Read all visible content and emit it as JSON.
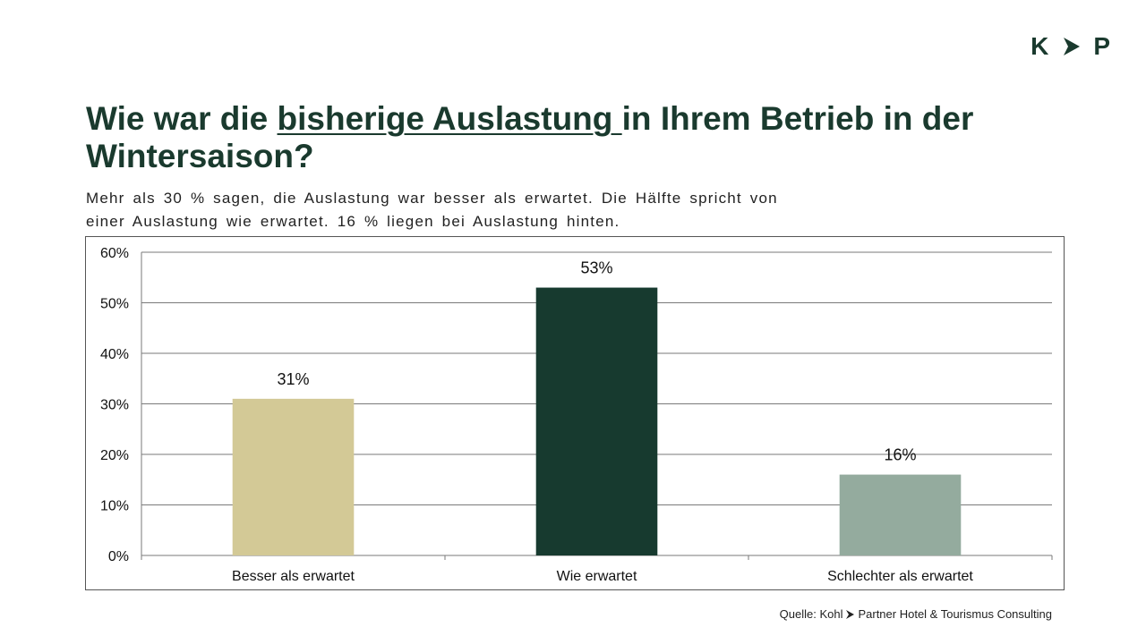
{
  "logo": {
    "left": "K",
    "right": "P",
    "arrow_icon": "chevron-right-icon"
  },
  "header": {
    "title_part1": "Wie war die ",
    "title_underlined": "bisherige Auslastung ",
    "title_part2": "in Ihrem Betrieb in der Wintersaison?",
    "subtitle": "Mehr als 30 % sagen, die Auslastung war besser als erwartet. Die Hälfte spricht von einer Auslastung wie erwartet. 16 % liegen bei Auslastung hinten."
  },
  "source": {
    "prefix": "Quelle: Kohl",
    "suffix": "Partner Hotel & Tourismus Consulting"
  },
  "chart_data": {
    "type": "bar",
    "categories": [
      "Besser als erwartet",
      "Wie erwartet",
      "Schlechter als erwartet"
    ],
    "values": [
      31,
      53,
      16
    ],
    "data_labels": [
      "31%",
      "53%",
      "16%"
    ],
    "colors": [
      "#d3c996",
      "#173a2f",
      "#94ab9e"
    ],
    "yticks": [
      0,
      10,
      20,
      30,
      40,
      50,
      60
    ],
    "ytick_labels": [
      "0%",
      "10%",
      "20%",
      "30%",
      "40%",
      "50%",
      "60%"
    ],
    "ylim": [
      0,
      60
    ],
    "grid": true,
    "legend": "none"
  }
}
